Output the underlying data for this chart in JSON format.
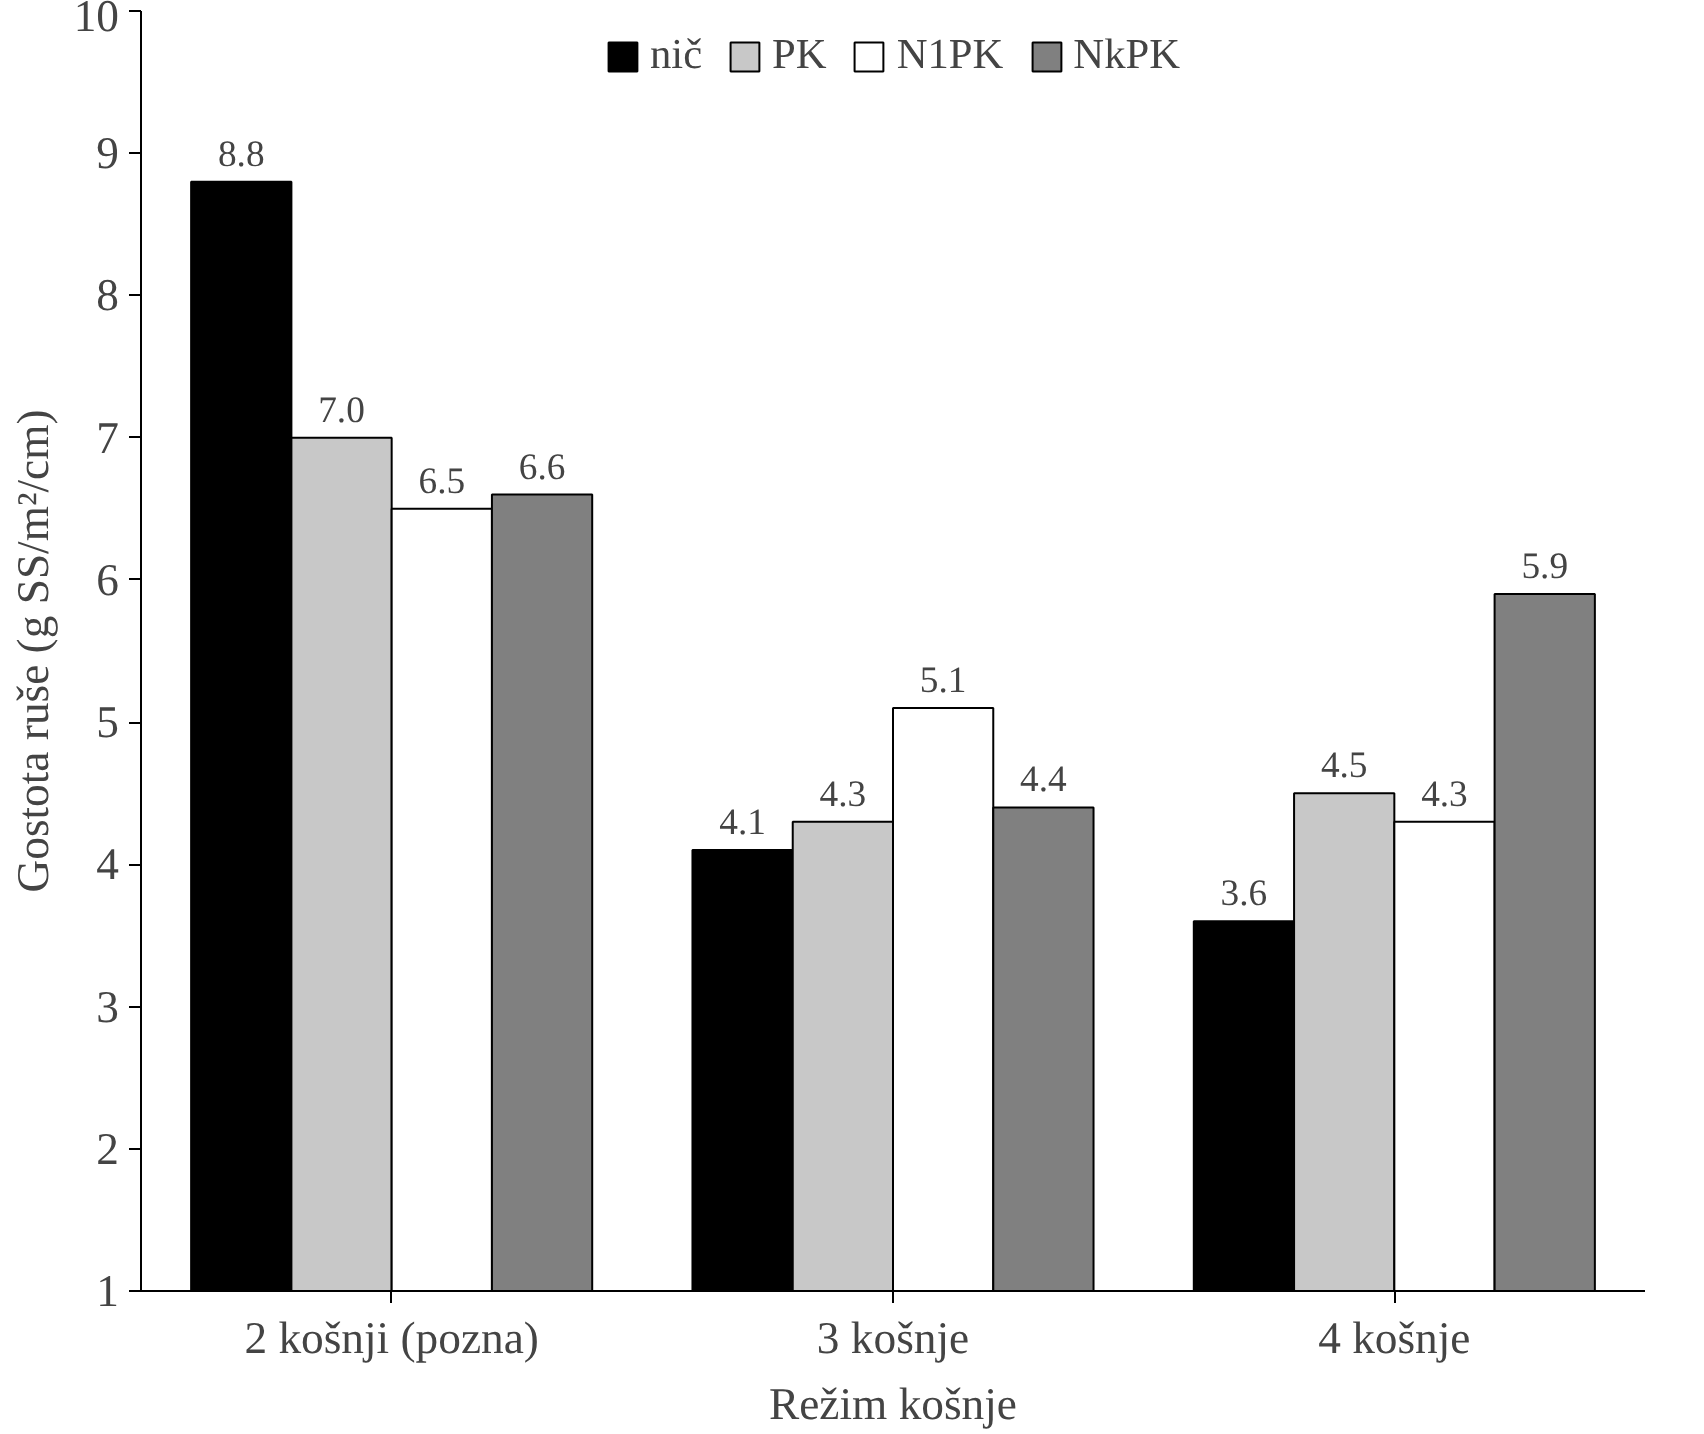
{
  "chart_data": {
    "type": "bar",
    "xlabel": "Režim košnje",
    "ylabel": "Gostota ruše (g SS/m²/cm)",
    "categories": [
      "2 košnji (pozna)",
      "3 košnje",
      "4 košnje"
    ],
    "series": [
      {
        "name": "nič",
        "color": "#000000",
        "values": [
          8.8,
          4.1,
          3.6
        ],
        "value_labels": [
          "8.8",
          "4.1",
          "3.6"
        ]
      },
      {
        "name": "PK",
        "color": "#c8c8c8",
        "values": [
          7.0,
          4.3,
          4.5
        ],
        "value_labels": [
          "7.0",
          "4.3",
          "4.5"
        ]
      },
      {
        "name": "N1PK",
        "color": "#ffffff",
        "values": [
          6.5,
          5.1,
          4.3
        ],
        "value_labels": [
          "6.5",
          "5.1",
          "4.3"
        ]
      },
      {
        "name": "NkPK",
        "color": "#808080",
        "values": [
          6.6,
          4.4,
          5.9
        ],
        "value_labels": [
          "6.6",
          "4.4",
          "5.9"
        ]
      }
    ],
    "ylim": [
      1,
      10
    ],
    "yticks": [
      1,
      2,
      3,
      4,
      5,
      6,
      7,
      8,
      9,
      10
    ],
    "grid": false,
    "legend": "top"
  }
}
